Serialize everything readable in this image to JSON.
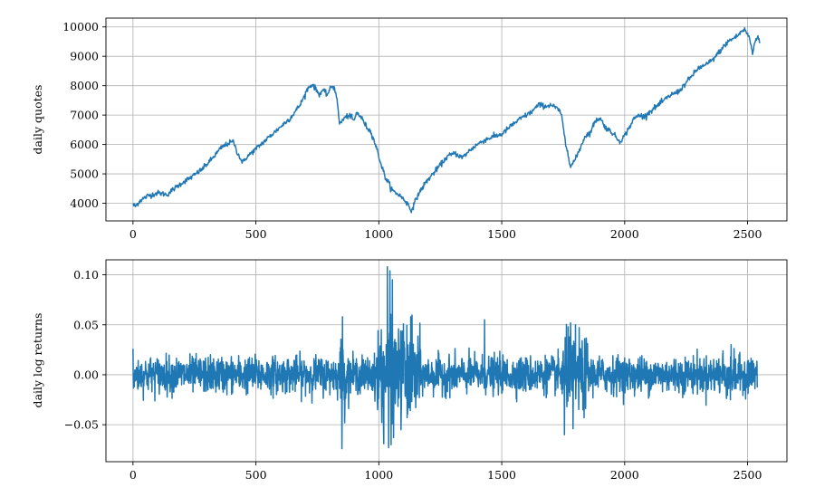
{
  "chart_data": [
    {
      "type": "line",
      "ylabel": "daily quotes",
      "xlabel": "",
      "xlim": [
        -110,
        2660
      ],
      "ylim": [
        3400,
        10300
      ],
      "xticks": [
        0,
        500,
        1000,
        1500,
        2000,
        2500
      ],
      "yticks": [
        4000,
        5000,
        6000,
        7000,
        8000,
        9000,
        10000
      ],
      "grid": true,
      "color": "#1f77b4",
      "series": [
        {
          "x": [
            0,
            10,
            30,
            60,
            100,
            140,
            160,
            200,
            240,
            280,
            320,
            360,
            390,
            410,
            420,
            430,
            440,
            450,
            460,
            480,
            520,
            560,
            600,
            640,
            680,
            700,
            710,
            730,
            750,
            760,
            770,
            790,
            810,
            820,
            830,
            835,
            840,
            860,
            880,
            900,
            910,
            930,
            950,
            970,
            990,
            1010,
            1030,
            1040,
            1050,
            1060,
            1080,
            1100,
            1120,
            1130,
            1140,
            1160,
            1190,
            1220,
            1250,
            1280,
            1310,
            1340,
            1370,
            1400,
            1430,
            1460,
            1500,
            1540,
            1580,
            1620,
            1650,
            1680,
            1700,
            1720,
            1740,
            1750,
            1760,
            1770,
            1780,
            1800,
            1820,
            1840,
            1860,
            1880,
            1900,
            1920,
            1950,
            1980,
            2000,
            2020,
            2040,
            2060,
            2080,
            2100,
            2130,
            2160,
            2190,
            2220,
            2250,
            2280,
            2300,
            2330,
            2360,
            2390,
            2420,
            2440,
            2460,
            2475,
            2490,
            2500,
            2510,
            2520,
            2530,
            2540,
            2550
          ],
          "y": [
            3950,
            3900,
            4100,
            4250,
            4350,
            4300,
            4450,
            4700,
            4900,
            5150,
            5500,
            5900,
            6050,
            6100,
            5800,
            5650,
            5450,
            5400,
            5550,
            5700,
            6000,
            6300,
            6600,
            6900,
            7350,
            7700,
            7900,
            8050,
            7800,
            7700,
            7850,
            7700,
            8000,
            7900,
            7600,
            7100,
            6700,
            6900,
            7000,
            6800,
            7100,
            6900,
            6600,
            6400,
            5900,
            5300,
            4800,
            4700,
            4500,
            4400,
            4300,
            4150,
            3950,
            3750,
            3900,
            4300,
            4700,
            5000,
            5300,
            5600,
            5700,
            5550,
            5800,
            6000,
            6150,
            6250,
            6350,
            6650,
            6900,
            7100,
            7350,
            7300,
            7350,
            7250,
            7100,
            6600,
            6000,
            5700,
            5250,
            5500,
            5900,
            6300,
            6400,
            6800,
            6900,
            6600,
            6400,
            6100,
            6300,
            6600,
            6900,
            7000,
            6950,
            7100,
            7300,
            7500,
            7700,
            7800,
            8100,
            8400,
            8600,
            8700,
            8900,
            9200,
            9500,
            9600,
            9700,
            9850,
            9900,
            9750,
            9550,
            9100,
            9500,
            9700,
            9450
          ]
        }
      ]
    },
    {
      "type": "line",
      "ylabel": "daily log returns",
      "xlabel": "",
      "xlim": [
        -110,
        2660
      ],
      "ylim": [
        -0.087,
        0.115
      ],
      "xticks": [
        0,
        500,
        1000,
        1500,
        2000,
        2500
      ],
      "yticks": [
        -0.05,
        0.0,
        0.05,
        0.1
      ],
      "ytick_labels": [
        "−0.05",
        "0.00",
        "0.05",
        "0.10"
      ],
      "grid": true,
      "color": "#1f77b4",
      "n_points": 2540,
      "spikes": [
        {
          "x": 0,
          "y": 0.026
        },
        {
          "x": 5,
          "y": -0.012
        },
        {
          "x": 850,
          "y": -0.074
        },
        {
          "x": 852,
          "y": 0.058
        },
        {
          "x": 995,
          "y": -0.035
        },
        {
          "x": 1010,
          "y": 0.045
        },
        {
          "x": 1020,
          "y": -0.069
        },
        {
          "x": 1035,
          "y": 0.108
        },
        {
          "x": 1040,
          "y": -0.073
        },
        {
          "x": 1045,
          "y": 0.104
        },
        {
          "x": 1050,
          "y": -0.07
        },
        {
          "x": 1055,
          "y": 0.095
        },
        {
          "x": 1060,
          "y": -0.063
        },
        {
          "x": 1080,
          "y": 0.046
        },
        {
          "x": 1090,
          "y": -0.055
        },
        {
          "x": 1100,
          "y": 0.051
        },
        {
          "x": 1115,
          "y": -0.043
        },
        {
          "x": 1130,
          "y": 0.058
        },
        {
          "x": 1150,
          "y": -0.033
        },
        {
          "x": 1430,
          "y": 0.055
        },
        {
          "x": 1755,
          "y": -0.06
        },
        {
          "x": 1770,
          "y": 0.048
        },
        {
          "x": 1780,
          "y": 0.052
        },
        {
          "x": 1790,
          "y": -0.054
        },
        {
          "x": 1800,
          "y": 0.05
        },
        {
          "x": 1830,
          "y": -0.035
        },
        {
          "x": 2400,
          "y": 0.024
        },
        {
          "x": 2430,
          "y": -0.025
        }
      ]
    }
  ]
}
